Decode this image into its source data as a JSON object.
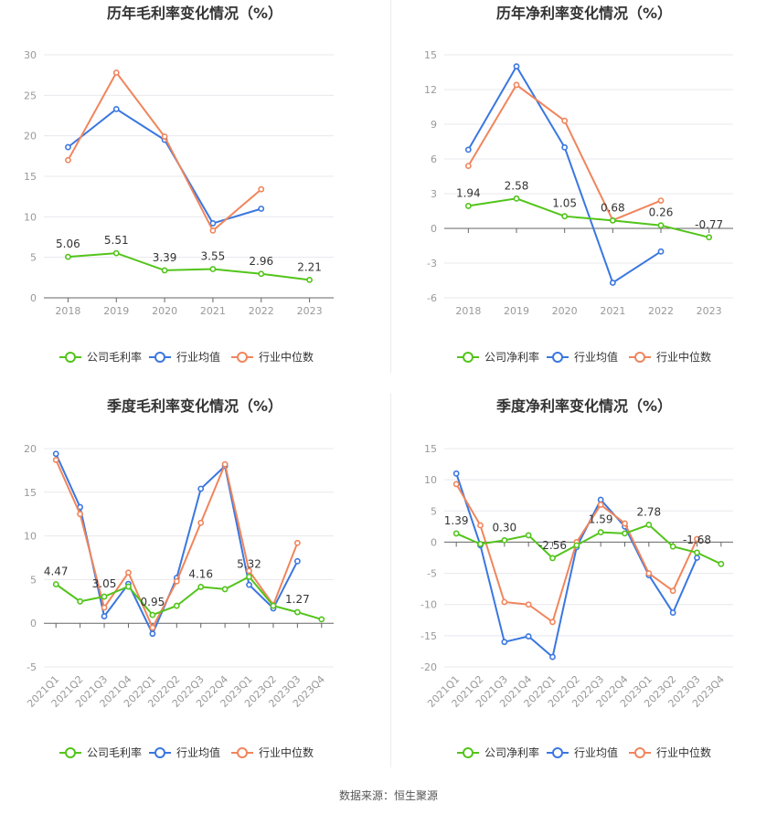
{
  "footer": {
    "label": "数据来源：",
    "source": "恒生聚源"
  },
  "colors": {
    "company": "#52c41a",
    "industry_avg": "#3a77e0",
    "industry_median": "#f0855c",
    "grid": "#e8e8ee",
    "axis_text": "#999999",
    "title": "#333333"
  },
  "chart_data": [
    {
      "id": "annual-gross",
      "type": "line",
      "title": "历年毛利率变化情况（%）",
      "categories": [
        "2018",
        "2019",
        "2020",
        "2021",
        "2022",
        "2023"
      ],
      "ylim": [
        0,
        30
      ],
      "yticks": [
        0,
        5,
        10,
        15,
        20,
        25,
        30
      ],
      "grid": true,
      "legend_position": "bottom",
      "series": [
        {
          "name": "公司毛利率",
          "color": "#52c41a",
          "values": [
            5.06,
            5.51,
            3.39,
            3.55,
            2.96,
            2.21
          ],
          "labels": [
            "5.06",
            "5.51",
            "3.39",
            "3.55",
            "2.96",
            "2.21"
          ]
        },
        {
          "name": "行业均值",
          "color": "#3a77e0",
          "values": [
            18.6,
            23.3,
            19.5,
            9.2,
            11.0,
            null
          ]
        },
        {
          "name": "行业中位数",
          "color": "#f0855c",
          "values": [
            17.0,
            27.8,
            19.9,
            8.3,
            13.4,
            null
          ]
        }
      ]
    },
    {
      "id": "annual-net",
      "type": "line",
      "title": "历年净利率变化情况（%）",
      "categories": [
        "2018",
        "2019",
        "2020",
        "2021",
        "2022",
        "2023"
      ],
      "ylim": [
        -6,
        15
      ],
      "yticks": [
        -6,
        -3,
        0,
        3,
        6,
        9,
        12,
        15
      ],
      "grid": true,
      "legend_position": "bottom",
      "series": [
        {
          "name": "公司净利率",
          "color": "#52c41a",
          "values": [
            1.94,
            2.58,
            1.05,
            0.68,
            0.26,
            -0.77
          ],
          "labels": [
            "1.94",
            "2.58",
            "1.05",
            "0.68",
            "0.26",
            "-0.77"
          ]
        },
        {
          "name": "行业均值",
          "color": "#3a77e0",
          "values": [
            6.8,
            14.0,
            7.0,
            -4.7,
            -2.0,
            null
          ]
        },
        {
          "name": "行业中位数",
          "color": "#f0855c",
          "values": [
            5.4,
            12.4,
            9.3,
            0.7,
            2.4,
            null
          ]
        }
      ]
    },
    {
      "id": "quarterly-gross",
      "type": "line",
      "title": "季度毛利率变化情况（%）",
      "categories": [
        "2021Q1",
        "2021Q2",
        "2021Q3",
        "2021Q4",
        "2022Q1",
        "2022Q2",
        "2022Q3",
        "2022Q4",
        "2023Q1",
        "2023Q2",
        "2023Q3",
        "2023Q4"
      ],
      "ylim": [
        -5,
        20
      ],
      "yticks": [
        -5,
        0,
        5,
        10,
        15,
        20
      ],
      "grid": true,
      "legend_position": "bottom",
      "series": [
        {
          "name": "公司毛利率",
          "color": "#52c41a",
          "values": [
            4.47,
            2.5,
            3.05,
            4.2,
            0.95,
            2.0,
            4.16,
            3.9,
            5.32,
            2.0,
            1.27,
            0.45
          ],
          "labels": [
            "4.47",
            "",
            "3.05",
            "",
            "0.95",
            "",
            "4.16",
            "",
            "5.32",
            "",
            "1.27",
            ""
          ]
        },
        {
          "name": "行业均值",
          "color": "#3a77e0",
          "values": [
            19.4,
            13.3,
            0.8,
            4.5,
            -1.2,
            5.2,
            15.4,
            18.0,
            4.4,
            1.7,
            7.1,
            null
          ]
        },
        {
          "name": "行业中位数",
          "color": "#f0855c",
          "values": [
            18.7,
            12.5,
            1.8,
            5.8,
            -0.5,
            4.8,
            11.5,
            18.2,
            6.0,
            2.1,
            9.2,
            null
          ]
        }
      ]
    },
    {
      "id": "quarterly-net",
      "type": "line",
      "title": "季度净利率变化情况（%）",
      "categories": [
        "2021Q1",
        "2021Q2",
        "2021Q3",
        "2021Q4",
        "2022Q1",
        "2022Q2",
        "2022Q3",
        "2022Q4",
        "2023Q1",
        "2023Q2",
        "2023Q3",
        "2023Q4"
      ],
      "ylim": [
        -20,
        15
      ],
      "yticks": [
        -20,
        -15,
        -10,
        -5,
        0,
        5,
        10,
        15
      ],
      "grid": true,
      "legend_position": "bottom",
      "series": [
        {
          "name": "公司净利率",
          "color": "#52c41a",
          "values": [
            1.39,
            -0.3,
            0.3,
            1.1,
            -2.56,
            -0.5,
            1.59,
            1.4,
            2.78,
            -0.7,
            -1.68,
            -3.5
          ],
          "labels": [
            "1.39",
            "",
            "0.30",
            "",
            "-2.56",
            "",
            "1.59",
            "",
            "2.78",
            "",
            "-1.68",
            ""
          ]
        },
        {
          "name": "行业均值",
          "color": "#3a77e0",
          "values": [
            11.0,
            -0.5,
            -16.0,
            -15.1,
            -18.4,
            -0.8,
            6.8,
            2.5,
            -5.3,
            -11.3,
            -2.5,
            null
          ]
        },
        {
          "name": "行业中位数",
          "color": "#f0855c",
          "values": [
            9.3,
            2.7,
            -9.6,
            -10.0,
            -12.8,
            0.0,
            6.0,
            3.0,
            -5.0,
            -7.8,
            0.5,
            null
          ]
        }
      ]
    }
  ]
}
